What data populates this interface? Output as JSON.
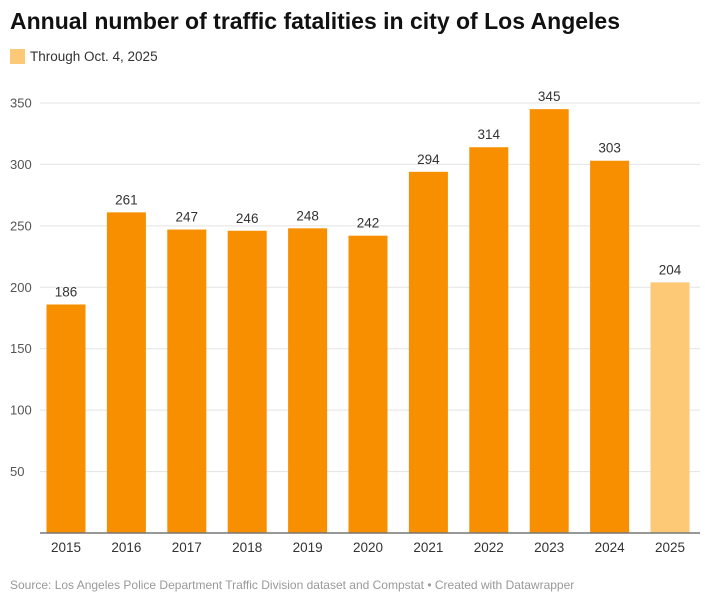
{
  "chart_data": {
    "type": "bar",
    "title": "Annual number of traffic fatalities in city of Los Angeles",
    "legend": [
      {
        "label": "Through Oct. 4, 2025",
        "color": "#fec976"
      }
    ],
    "legend_placement": "top-left",
    "categories": [
      "2015",
      "2016",
      "2017",
      "2018",
      "2019",
      "2020",
      "2021",
      "2022",
      "2023",
      "2024",
      "2025"
    ],
    "values": [
      186,
      261,
      247,
      246,
      248,
      242,
      294,
      314,
      345,
      303,
      204
    ],
    "colors": [
      "#f78f00",
      "#f78f00",
      "#f78f00",
      "#f78f00",
      "#f78f00",
      "#f78f00",
      "#f78f00",
      "#f78f00",
      "#f78f00",
      "#f78f00",
      "#fec976"
    ],
    "yticks": [
      50,
      100,
      150,
      200,
      250,
      300,
      350
    ],
    "ylim": [
      0,
      350
    ],
    "grid": true,
    "xlabel": "",
    "ylabel": "",
    "source": "Source: Los Angeles Police Department Traffic Division dataset and Compstat • Created with Datawrapper"
  }
}
